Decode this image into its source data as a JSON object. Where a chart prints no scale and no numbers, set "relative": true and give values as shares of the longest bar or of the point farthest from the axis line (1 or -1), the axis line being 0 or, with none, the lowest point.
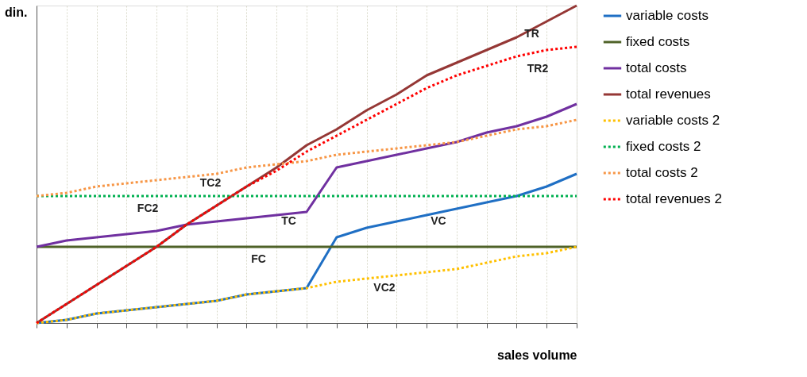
{
  "chart_data": {
    "type": "line",
    "relative": true,
    "xlabel": "sales volume",
    "ylabel": "din.",
    "categories": [
      null,
      null,
      null,
      null,
      null,
      null,
      null,
      null,
      null,
      null,
      null,
      null,
      null,
      null,
      null,
      null,
      null,
      null,
      null
    ],
    "grid": "x",
    "legend": "right",
    "series": [
      {
        "name": "variable costs",
        "color": "#1f6fc4",
        "line_style": "solid",
        "values": [
          0,
          0.01,
          0.03,
          0.04,
          0.05,
          0.06,
          0.07,
          0.09,
          0.1,
          0.11,
          0.27,
          0.3,
          0.32,
          0.34,
          0.36,
          0.38,
          0.4,
          0.43,
          0.47
        ]
      },
      {
        "name": "fixed costs",
        "color": "#4f6228",
        "line_style": "solid",
        "values": [
          0.24,
          0.24,
          0.24,
          0.24,
          0.24,
          0.24,
          0.24,
          0.24,
          0.24,
          0.24,
          0.24,
          0.24,
          0.24,
          0.24,
          0.24,
          0.24,
          0.24,
          0.24,
          0.24
        ]
      },
      {
        "name": "total costs",
        "color": "#7030a0",
        "line_style": "solid",
        "values": [
          0.24,
          0.26,
          0.27,
          0.28,
          0.29,
          0.31,
          0.32,
          0.33,
          0.34,
          0.35,
          0.49,
          0.51,
          0.53,
          0.55,
          0.57,
          0.6,
          0.62,
          0.65,
          0.69
        ]
      },
      {
        "name": "total revenues",
        "color": "#953735",
        "line_style": "solid",
        "values": [
          0,
          0.06,
          0.12,
          0.18,
          0.24,
          0.31,
          0.37,
          0.43,
          0.49,
          0.56,
          0.61,
          0.67,
          0.72,
          0.78,
          0.82,
          0.86,
          0.9,
          0.95,
          1
        ]
      },
      {
        "name": "variable costs 2",
        "color": "#ffc000",
        "line_style": "dotted",
        "values": [
          0,
          0.01,
          0.03,
          0.04,
          0.05,
          0.06,
          0.07,
          0.09,
          0.1,
          0.11,
          0.13,
          0.14,
          0.15,
          0.16,
          0.17,
          0.19,
          0.21,
          0.22,
          0.24
        ]
      },
      {
        "name": "fixed costs 2",
        "color": "#00b050",
        "line_style": "dotted",
        "values": [
          0.4,
          0.4,
          0.4,
          0.4,
          0.4,
          0.4,
          0.4,
          0.4,
          0.4,
          0.4,
          0.4,
          0.4,
          0.4,
          0.4,
          0.4,
          0.4,
          0.4,
          0.4,
          0.4
        ]
      },
      {
        "name": "total costs 2",
        "color": "#f79646",
        "line_style": "dotted",
        "values": [
          0.4,
          0.41,
          0.43,
          0.44,
          0.45,
          0.46,
          0.47,
          0.49,
          0.5,
          0.51,
          0.53,
          0.54,
          0.55,
          0.56,
          0.57,
          0.59,
          0.61,
          0.62,
          0.64
        ]
      },
      {
        "name": "total revenues 2",
        "color": "#ff0000",
        "line_style": "dotted",
        "values": [
          0,
          0.06,
          0.12,
          0.18,
          0.24,
          0.31,
          0.37,
          0.43,
          0.48,
          0.54,
          0.59,
          0.64,
          0.69,
          0.74,
          0.78,
          0.81,
          0.84,
          0.86,
          0.87
        ]
      }
    ],
    "annotations": [
      "TR",
      "TR2",
      "TC2",
      "FC2",
      "TC",
      "FC",
      "VC",
      "VC2"
    ]
  }
}
